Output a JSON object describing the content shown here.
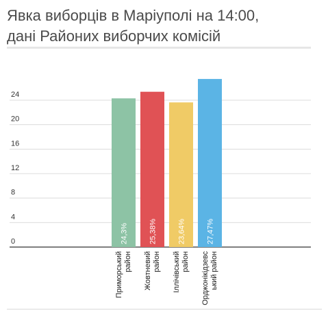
{
  "title_lines": [
    "Явка виборців в Маріуполі на 14:00,",
    "дані Районих виборчих комісій"
  ],
  "chart_data": {
    "type": "bar",
    "title": "Явка виборців в Маріуполі на 14:00, дані Районих виборчих комісій",
    "categories": [
      [
        "Приморський",
        "район"
      ],
      [
        "Жовтневий",
        "район"
      ],
      [
        "Іллічівський",
        "район"
      ],
      [
        "Орджонікідзевс",
        "ький район"
      ]
    ],
    "values": [
      24.3,
      25.38,
      23.64,
      27.47
    ],
    "data_labels": [
      "24,3%",
      "25,38%",
      "23,64%",
      "27,47%"
    ],
    "colors": [
      "#8dc3a5",
      "#e05255",
      "#f0cb66",
      "#5bb4e5"
    ],
    "yticks": [
      0,
      4,
      8,
      12,
      16,
      20,
      24
    ],
    "ylim": [
      0,
      28
    ],
    "grid": true,
    "xlabel": "",
    "ylabel": ""
  }
}
